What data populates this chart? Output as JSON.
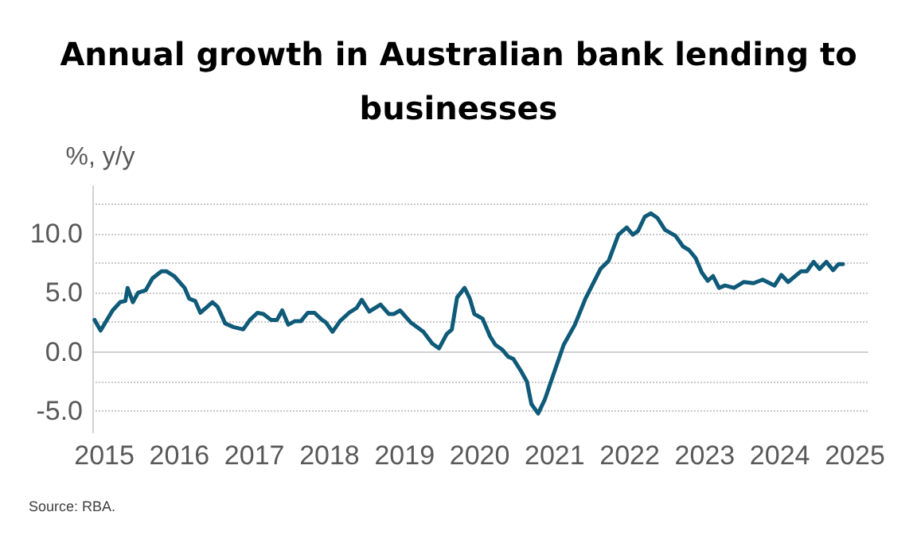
{
  "chart_data": {
    "type": "line",
    "title": "Annual growth in Australian bank lending to\nbusinesses",
    "ylabel": "%, y/y",
    "annotations": [
      "Source: RBA."
    ],
    "x": [
      2014.87,
      2014.95,
      2015.11,
      2015.21,
      2015.28,
      2015.31,
      2015.38,
      2015.45,
      2015.55,
      2015.64,
      2015.76,
      2015.83,
      2015.93,
      2016.07,
      2016.13,
      2016.21,
      2016.28,
      2016.44,
      2016.51,
      2016.61,
      2016.72,
      2016.85,
      2016.94,
      2017.04,
      2017.12,
      2017.22,
      2017.3,
      2017.37,
      2017.45,
      2017.54,
      2017.62,
      2017.71,
      2017.8,
      2017.9,
      2017.95,
      2018.04,
      2018.14,
      2018.26,
      2018.36,
      2018.43,
      2018.53,
      2018.68,
      2018.79,
      2018.86,
      2018.94,
      2019.08,
      2019.25,
      2019.37,
      2019.46,
      2019.56,
      2019.63,
      2019.7,
      2019.8,
      2019.87,
      2019.93,
      2020.04,
      2020.14,
      2020.21,
      2020.3,
      2020.38,
      2020.45,
      2020.55,
      2020.63,
      2020.69,
      2020.78,
      2020.87,
      2021.0,
      2021.12,
      2021.27,
      2021.41,
      2021.61,
      2021.72,
      2021.85,
      2021.96,
      2022.04,
      2022.11,
      2022.2,
      2022.28,
      2022.37,
      2022.47,
      2022.61,
      2022.71,
      2022.79,
      2022.88,
      2022.96,
      2023.04,
      2023.11,
      2023.19,
      2023.27,
      2023.39,
      2023.52,
      2023.65,
      2023.77,
      2023.93,
      2024.02,
      2024.11,
      2024.28,
      2024.36,
      2024.45,
      2024.53,
      2024.62,
      2024.71,
      2024.78,
      2024.84
    ],
    "series": [
      {
        "color": "#0e5a78",
        "values": [
          2.7,
          1.8,
          3.5,
          4.2,
          4.3,
          5.4,
          4.2,
          5.0,
          5.2,
          6.2,
          6.8,
          6.8,
          6.4,
          5.4,
          4.5,
          4.3,
          3.3,
          4.2,
          3.8,
          2.4,
          2.1,
          1.9,
          2.7,
          3.3,
          3.2,
          2.7,
          2.7,
          3.5,
          2.3,
          2.6,
          2.6,
          3.3,
          3.3,
          2.7,
          2.5,
          1.7,
          2.6,
          3.3,
          3.7,
          4.4,
          3.4,
          4.0,
          3.2,
          3.2,
          3.5,
          2.5,
          1.7,
          0.7,
          0.3,
          1.5,
          1.9,
          4.6,
          5.4,
          4.5,
          3.2,
          2.8,
          1.3,
          0.6,
          0.2,
          -0.4,
          -0.6,
          -1.6,
          -2.5,
          -4.4,
          -5.2,
          -4.0,
          -1.6,
          0.6,
          2.3,
          4.5,
          7.0,
          7.7,
          9.9,
          10.5,
          9.9,
          10.2,
          11.4,
          11.7,
          11.3,
          10.3,
          9.8,
          8.9,
          8.6,
          7.9,
          6.7,
          6.0,
          6.4,
          5.4,
          5.6,
          5.4,
          5.9,
          5.8,
          6.1,
          5.6,
          6.5,
          5.9,
          6.8,
          6.8,
          7.6,
          7.0,
          7.6,
          6.9,
          7.4,
          7.4
        ]
      }
    ],
    "xlim": [
      2014.84,
      2025.17
    ],
    "xticks": [
      2015,
      2016,
      2017,
      2018,
      2019,
      2020,
      2021,
      2022,
      2023,
      2024,
      2025
    ],
    "ylim": [
      -6.8,
      14
    ],
    "yticks": [
      {
        "value": -5,
        "label": "-5.0"
      },
      {
        "value": -2.5,
        "label": null
      },
      {
        "value": 0,
        "label": "0.0"
      },
      {
        "value": 2.5,
        "label": null
      },
      {
        "value": 5,
        "label": "5.0"
      },
      {
        "value": 7.5,
        "label": null
      },
      {
        "value": 10,
        "label": "10.0"
      },
      {
        "value": 12.5,
        "label": null
      }
    ],
    "grid": "y",
    "marker": "none",
    "line_style": "solid"
  }
}
